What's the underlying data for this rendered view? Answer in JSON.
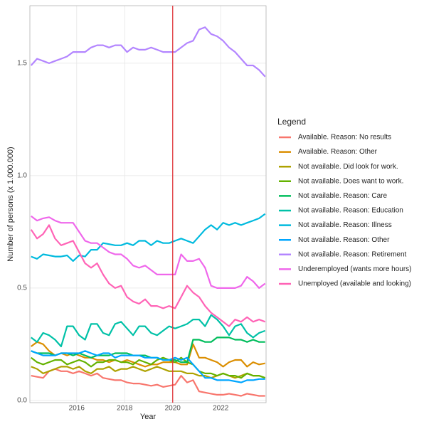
{
  "chart_data": {
    "type": "line",
    "x_label": "Year",
    "y_label": "Number of persons (x 1.000.000)",
    "legend_title": "Legend",
    "xlim": [
      2014.05,
      2023.89
    ],
    "ylim": [
      -0.01,
      1.756
    ],
    "xticks": [
      2016,
      2018,
      2020,
      2022
    ],
    "yticks": [
      {
        "value": 0,
        "label": "0.0"
      },
      0.5,
      {
        "value": 1,
        "label": "1.0"
      },
      1.5
    ],
    "grid": true,
    "legend_position": "right",
    "vline": 2020,
    "vline_color": "#e0353b",
    "x": [
      2014.1,
      2014.35,
      2014.6,
      2014.85,
      2015.1,
      2015.35,
      2015.6,
      2015.85,
      2016.1,
      2016.35,
      2016.6,
      2016.85,
      2017.1,
      2017.35,
      2017.6,
      2017.85,
      2018.1,
      2018.35,
      2018.6,
      2018.85,
      2019.1,
      2019.35,
      2019.6,
      2019.85,
      2020.1,
      2020.35,
      2020.6,
      2020.85,
      2021.1,
      2021.35,
      2021.6,
      2021.85,
      2022.1,
      2022.35,
      2022.6,
      2022.85,
      2023.1,
      2023.35,
      2023.6,
      2023.85
    ],
    "series": [
      {
        "name": "Available. Reason: No results",
        "color": "#F8766D",
        "values": [
          0.11,
          0.105,
          0.1,
          0.13,
          0.14,
          0.13,
          0.13,
          0.12,
          0.13,
          0.12,
          0.11,
          0.12,
          0.1,
          0.095,
          0.09,
          0.09,
          0.08,
          0.075,
          0.075,
          0.07,
          0.065,
          0.07,
          0.06,
          0.065,
          0.07,
          0.11,
          0.08,
          0.09,
          0.04,
          0.035,
          0.03,
          0.025,
          0.025,
          0.03,
          0.025,
          0.02,
          0.03,
          0.025,
          0.02,
          0.02
        ]
      },
      {
        "name": "Available. Reason: Other",
        "color": "#DB8E00",
        "values": [
          0.24,
          0.26,
          0.25,
          0.22,
          0.2,
          0.21,
          0.2,
          0.21,
          0.2,
          0.19,
          0.19,
          0.18,
          0.18,
          0.17,
          0.18,
          0.17,
          0.18,
          0.17,
          0.16,
          0.15,
          0.16,
          0.16,
          0.17,
          0.17,
          0.17,
          0.16,
          0.16,
          0.25,
          0.19,
          0.19,
          0.18,
          0.17,
          0.15,
          0.17,
          0.18,
          0.18,
          0.15,
          0.17,
          0.16,
          0.165
        ]
      },
      {
        "name": "Not available. Did look for work.",
        "color": "#AEA200",
        "values": [
          0.15,
          0.14,
          0.12,
          0.13,
          0.14,
          0.15,
          0.15,
          0.14,
          0.15,
          0.13,
          0.12,
          0.14,
          0.14,
          0.15,
          0.13,
          0.14,
          0.14,
          0.15,
          0.14,
          0.13,
          0.14,
          0.15,
          0.14,
          0.13,
          0.13,
          0.13,
          0.12,
          0.12,
          0.11,
          0.11,
          0.1,
          0.11,
          0.12,
          0.11,
          0.1,
          0.11,
          0.12,
          0.11,
          0.11,
          0.1
        ]
      },
      {
        "name": "Not available. Does want to work.",
        "color": "#64B200",
        "values": [
          0.19,
          0.17,
          0.16,
          0.17,
          0.18,
          0.18,
          0.16,
          0.17,
          0.18,
          0.17,
          0.15,
          0.17,
          0.17,
          0.18,
          0.18,
          0.17,
          0.17,
          0.16,
          0.18,
          0.17,
          0.16,
          0.18,
          0.19,
          0.18,
          0.17,
          0.19,
          0.17,
          0.16,
          0.13,
          0.12,
          0.12,
          0.11,
          0.12,
          0.11,
          0.11,
          0.1,
          0.12,
          0.11,
          0.11,
          0.1
        ]
      },
      {
        "name": "Not available. Reason: Care",
        "color": "#00BD5C",
        "values": [
          0.22,
          0.21,
          0.21,
          0.21,
          0.2,
          0.21,
          0.21,
          0.2,
          0.21,
          0.2,
          0.19,
          0.2,
          0.2,
          0.2,
          0.21,
          0.21,
          0.21,
          0.2,
          0.2,
          0.2,
          0.19,
          0.19,
          0.18,
          0.18,
          0.18,
          0.17,
          0.17,
          0.27,
          0.27,
          0.26,
          0.26,
          0.28,
          0.28,
          0.28,
          0.27,
          0.27,
          0.26,
          0.27,
          0.26,
          0.26
        ]
      },
      {
        "name": "Not available. Reason: Education",
        "color": "#00C1A7",
        "values": [
          0.28,
          0.26,
          0.3,
          0.29,
          0.27,
          0.24,
          0.33,
          0.33,
          0.29,
          0.27,
          0.34,
          0.34,
          0.3,
          0.29,
          0.34,
          0.35,
          0.32,
          0.29,
          0.33,
          0.33,
          0.3,
          0.29,
          0.31,
          0.33,
          0.32,
          0.33,
          0.34,
          0.36,
          0.36,
          0.33,
          0.38,
          0.36,
          0.33,
          0.29,
          0.33,
          0.34,
          0.3,
          0.28,
          0.3,
          0.31
        ]
      },
      {
        "name": "Not available. Reason: Illness",
        "color": "#00BADE",
        "values": [
          0.64,
          0.63,
          0.65,
          0.645,
          0.64,
          0.64,
          0.645,
          0.62,
          0.645,
          0.64,
          0.67,
          0.67,
          0.7,
          0.695,
          0.69,
          0.69,
          0.7,
          0.69,
          0.71,
          0.71,
          0.69,
          0.71,
          0.7,
          0.7,
          0.71,
          0.72,
          0.71,
          0.7,
          0.73,
          0.76,
          0.78,
          0.76,
          0.79,
          0.78,
          0.79,
          0.78,
          0.79,
          0.8,
          0.81,
          0.83
        ]
      },
      {
        "name": "Not available. Reason: Other",
        "color": "#00A6FF",
        "values": [
          0.22,
          0.21,
          0.2,
          0.2,
          0.2,
          0.21,
          0.21,
          0.21,
          0.21,
          0.22,
          0.21,
          0.2,
          0.21,
          0.21,
          0.19,
          0.2,
          0.2,
          0.2,
          0.2,
          0.19,
          0.19,
          0.19,
          0.18,
          0.18,
          0.19,
          0.18,
          0.19,
          0.16,
          0.13,
          0.1,
          0.1,
          0.09,
          0.09,
          0.09,
          0.085,
          0.08,
          0.09,
          0.09,
          0.095,
          0.095
        ]
      },
      {
        "name": "Not available. Reason: Retirement",
        "color": "#B385FF",
        "values": [
          1.49,
          1.52,
          1.51,
          1.5,
          1.51,
          1.52,
          1.53,
          1.55,
          1.55,
          1.55,
          1.57,
          1.58,
          1.58,
          1.57,
          1.58,
          1.58,
          1.55,
          1.57,
          1.56,
          1.56,
          1.57,
          1.56,
          1.55,
          1.55,
          1.55,
          1.57,
          1.59,
          1.6,
          1.65,
          1.66,
          1.63,
          1.62,
          1.6,
          1.57,
          1.55,
          1.52,
          1.49,
          1.49,
          1.47,
          1.44
        ]
      },
      {
        "name": "Underemployed (wants more hours)",
        "color": "#EF67EB",
        "values": [
          0.82,
          0.8,
          0.81,
          0.815,
          0.8,
          0.79,
          0.79,
          0.79,
          0.75,
          0.71,
          0.7,
          0.7,
          0.68,
          0.66,
          0.65,
          0.65,
          0.63,
          0.6,
          0.59,
          0.6,
          0.58,
          0.56,
          0.56,
          0.56,
          0.56,
          0.65,
          0.62,
          0.62,
          0.63,
          0.59,
          0.51,
          0.5,
          0.5,
          0.5,
          0.5,
          0.51,
          0.55,
          0.53,
          0.5,
          0.52
        ]
      },
      {
        "name": "Unemployed (available and looking)",
        "color": "#FF63B6",
        "values": [
          0.76,
          0.72,
          0.74,
          0.78,
          0.72,
          0.69,
          0.7,
          0.71,
          0.66,
          0.61,
          0.59,
          0.61,
          0.56,
          0.52,
          0.5,
          0.51,
          0.46,
          0.44,
          0.43,
          0.45,
          0.42,
          0.42,
          0.41,
          0.42,
          0.41,
          0.46,
          0.51,
          0.48,
          0.46,
          0.42,
          0.39,
          0.37,
          0.35,
          0.33,
          0.36,
          0.35,
          0.37,
          0.35,
          0.36,
          0.35
        ]
      }
    ]
  }
}
